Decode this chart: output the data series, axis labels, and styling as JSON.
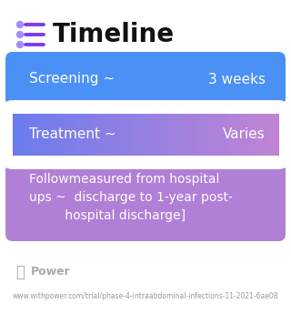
{
  "title": "Timeline",
  "title_fontsize": 20,
  "title_color": "#111111",
  "background_color": "#ffffff",
  "icon_color": "#7c3aed",
  "icon_dot_color": "#a78bfa",
  "bars": [
    {
      "label_left": "Screening ~",
      "label_right": "3 weeks",
      "single_color": "#4a90f5",
      "gradient": false,
      "font_size": 11,
      "text_color": "#ffffff"
    },
    {
      "label_left": "Treatment ~",
      "label_right": "Varies",
      "color_left": "#6b7cee",
      "color_right": "#c084d4",
      "gradient": true,
      "font_size": 11,
      "text_color": "#ffffff"
    },
    {
      "label_left": "Followmeasured from hospital\nups ~  discharge to 1-year post-\n         hospital discharge]",
      "label_right": "",
      "single_color": "#b07fd6",
      "gradient": false,
      "font_size": 10,
      "text_color": "#ffffff"
    }
  ],
  "footer_logo_text": "Power",
  "footer_url": "www.withpower.com/trial/phase-4-intraabdominal-infections-11-2021-6ae08",
  "footer_text_color": "#999999",
  "footer_logo_color": "#aaaaaa",
  "footer_fontsize": 5.5,
  "footer_logo_fontsize": 9
}
